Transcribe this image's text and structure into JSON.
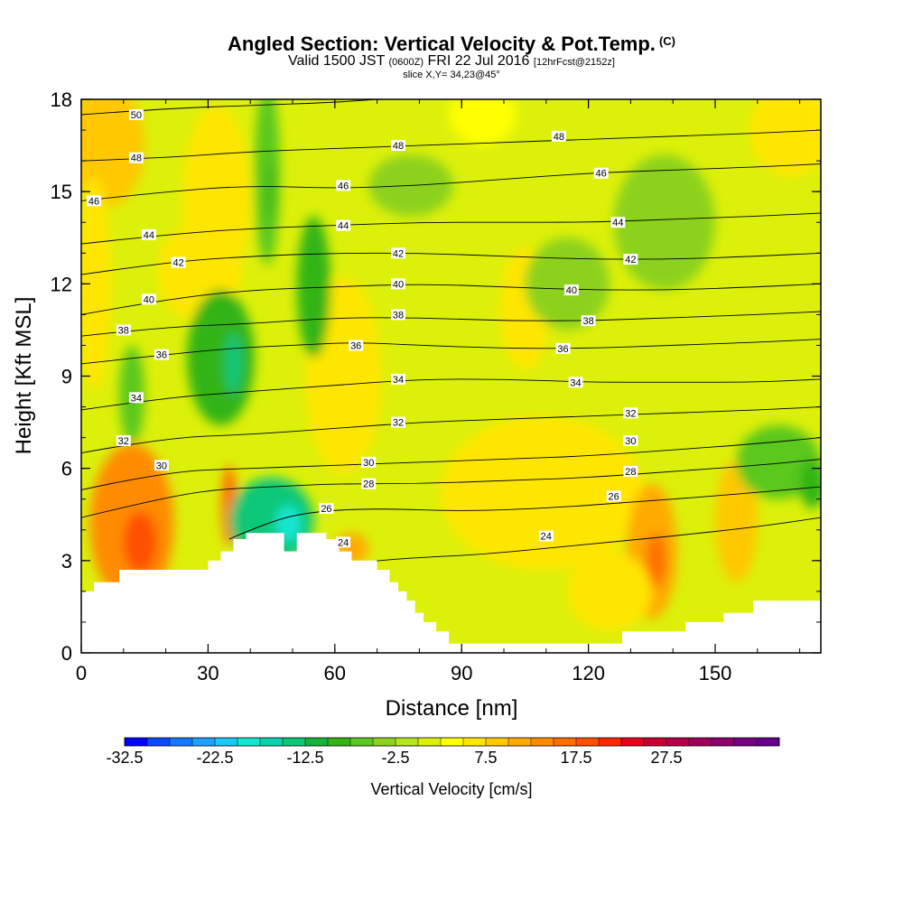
{
  "title": {
    "main": "Angled Section: Vertical Velocity & Pot.Temp.",
    "copyright": "(C)",
    "valid_prefix": "Valid 1500 JST",
    "zulu": "(0600Z)",
    "date": "FRI 22 Jul 2016",
    "forecast": "[12hrFcst@2152z]",
    "slice": "slice X,Y= 34,23@45°"
  },
  "chart_data": {
    "type": "heatmap",
    "title": "Angled Section: Vertical Velocity & Pot.Temp.",
    "xlabel": "Distance [nm]",
    "ylabel": "Height [Kft MSL]",
    "xlim": [
      0,
      175
    ],
    "ylim": [
      0,
      18
    ],
    "x_ticks": [
      "0",
      "30",
      "60",
      "90",
      "120",
      "150"
    ],
    "y_ticks": [
      "0",
      "3",
      "6",
      "9",
      "12",
      "15",
      "18"
    ],
    "colorbar": {
      "label": "Vertical Velocity [cm/s]",
      "tick_labels": [
        "-32.5",
        "-22.5",
        "-12.5",
        "-2.5",
        "7.5",
        "17.5",
        "27.5"
      ],
      "min": -32.5,
      "step": 2.5,
      "colors": [
        "#0000ff",
        "#0a4aff",
        "#1478ff",
        "#1ea0ff",
        "#19c8f5",
        "#14e6d2",
        "#0ad2aa",
        "#0ac878",
        "#14b43c",
        "#32b414",
        "#5ac81e",
        "#8cd21e",
        "#b4e61e",
        "#dcf00a",
        "#ffff00",
        "#ffe600",
        "#ffc800",
        "#ffaa00",
        "#ff8c00",
        "#ff6e00",
        "#ff5000",
        "#ff2800",
        "#e6001e",
        "#c80032",
        "#b4004b",
        "#a0005a",
        "#8c006e",
        "#780082",
        "#64008c"
      ]
    },
    "terrain_kft": [
      [
        0,
        2.0
      ],
      [
        3,
        2.0
      ],
      [
        3,
        2.3
      ],
      [
        9,
        2.3
      ],
      [
        9,
        2.7
      ],
      [
        30,
        2.7
      ],
      [
        30,
        3.0
      ],
      [
        33,
        3.0
      ],
      [
        33,
        3.3
      ],
      [
        36,
        3.3
      ],
      [
        36,
        3.7
      ],
      [
        39,
        3.7
      ],
      [
        39,
        3.9
      ],
      [
        48,
        3.9
      ],
      [
        48,
        3.3
      ],
      [
        51,
        3.3
      ],
      [
        51,
        3.9
      ],
      [
        58,
        3.9
      ],
      [
        58,
        3.7
      ],
      [
        61,
        3.7
      ],
      [
        61,
        3.3
      ],
      [
        64,
        3.3
      ],
      [
        64,
        3.0
      ],
      [
        70,
        3.0
      ],
      [
        70,
        2.7
      ],
      [
        73,
        2.7
      ],
      [
        73,
        2.3
      ],
      [
        75,
        2.3
      ],
      [
        75,
        2.0
      ],
      [
        77,
        2.0
      ],
      [
        77,
        1.7
      ],
      [
        79,
        1.7
      ],
      [
        79,
        1.3
      ],
      [
        81,
        1.3
      ],
      [
        81,
        1.0
      ],
      [
        84,
        1.0
      ],
      [
        84,
        0.7
      ],
      [
        87,
        0.7
      ],
      [
        87,
        0.3
      ],
      [
        128,
        0.3
      ],
      [
        128,
        0.7
      ],
      [
        143,
        0.7
      ],
      [
        143,
        1.0
      ],
      [
        152,
        1.0
      ],
      [
        152,
        1.3
      ],
      [
        159,
        1.3
      ],
      [
        159,
        1.7
      ],
      [
        175,
        1.7
      ]
    ],
    "velocity_cells": [
      {
        "x": 12,
        "y": 4.2,
        "rx": 10,
        "ry": 2.6,
        "w": 14
      },
      {
        "x": 14,
        "y": 3.6,
        "rx": 4,
        "ry": 1.0,
        "w": 19
      },
      {
        "x": 6,
        "y": 16.5,
        "rx": 9,
        "ry": 2.0,
        "w": 9
      },
      {
        "x": 3,
        "y": 12.0,
        "rx": 4,
        "ry": 3.5,
        "w": 6
      },
      {
        "x": 32,
        "y": 14.8,
        "rx": 8,
        "ry": 3.0,
        "w": 7
      },
      {
        "x": 28,
        "y": 12.4,
        "rx": 10,
        "ry": 1.6,
        "w": 6
      },
      {
        "x": 35,
        "y": 4.8,
        "rx": 1.8,
        "ry": 1.3,
        "w": 15
      },
      {
        "x": 62,
        "y": 9.0,
        "rx": 9,
        "ry": 3.2,
        "w": 6
      },
      {
        "x": 64,
        "y": 3.4,
        "rx": 4,
        "ry": 0.5,
        "w": 12
      },
      {
        "x": 109,
        "y": 5.2,
        "rx": 24,
        "ry": 2.5,
        "w": 6
      },
      {
        "x": 135,
        "y": 3.3,
        "rx": 6,
        "ry": 2.2,
        "w": 11
      },
      {
        "x": 136,
        "y": 3.0,
        "rx": 2.5,
        "ry": 0.9,
        "w": 15
      },
      {
        "x": 155,
        "y": 4.3,
        "rx": 5,
        "ry": 2.0,
        "w": 8
      },
      {
        "x": 125,
        "y": 2.0,
        "rx": 10,
        "ry": 1.3,
        "w": 6
      },
      {
        "x": 105,
        "y": 11.2,
        "rx": 6,
        "ry": 2.0,
        "w": 5
      },
      {
        "x": 168,
        "y": 17.0,
        "rx": 10,
        "ry": 1.5,
        "w": 5
      },
      {
        "x": 95,
        "y": 17.5,
        "rx": 8,
        "ry": 1.0,
        "w": 4
      },
      {
        "x": 33,
        "y": 9.6,
        "rx": 8,
        "ry": 2.2,
        "w": -10
      },
      {
        "x": 36,
        "y": 9.4,
        "rx": 2,
        "ry": 1.0,
        "w": -14
      },
      {
        "x": 45,
        "y": 4.3,
        "rx": 10,
        "ry": 1.4,
        "w": -13
      },
      {
        "x": 49,
        "y": 4.2,
        "rx": 3,
        "ry": 0.6,
        "w": -18
      },
      {
        "x": 55,
        "y": 11.9,
        "rx": 4,
        "ry": 2.3,
        "w": -8
      },
      {
        "x": 44,
        "y": 15.6,
        "rx": 3,
        "ry": 3.0,
        "w": -6
      },
      {
        "x": 45,
        "y": 15.0,
        "rx": 0.8,
        "ry": 1.0,
        "w": -10
      },
      {
        "x": 12,
        "y": 8.4,
        "rx": 3,
        "ry": 1.6,
        "w": -6
      },
      {
        "x": 138,
        "y": 14.0,
        "rx": 12,
        "ry": 2.2,
        "w": -5
      },
      {
        "x": 165,
        "y": 6.2,
        "rx": 10,
        "ry": 1.2,
        "w": -6
      },
      {
        "x": 173,
        "y": 5.5,
        "rx": 3,
        "ry": 0.8,
        "w": -8
      },
      {
        "x": 115,
        "y": 12.0,
        "rx": 10,
        "ry": 1.5,
        "w": -4
      },
      {
        "x": 78,
        "y": 15.2,
        "rx": 10,
        "ry": 1.0,
        "w": -4
      }
    ],
    "theta_contours": [
      {
        "level": 24,
        "pts": [
          [
            64,
            2.9
          ],
          [
            70,
            3.0
          ],
          [
            80,
            3.1
          ],
          [
            95,
            3.2
          ],
          [
            110,
            3.4
          ],
          [
            125,
            3.6
          ],
          [
            140,
            3.8
          ],
          [
            160,
            4.1
          ],
          [
            175,
            4.4
          ]
        ]
      },
      {
        "level": 26,
        "pts": [
          [
            35,
            3.7
          ],
          [
            45,
            4.3
          ],
          [
            55,
            4.6
          ],
          [
            70,
            4.7
          ],
          [
            90,
            4.6
          ],
          [
            110,
            4.7
          ],
          [
            130,
            4.9
          ],
          [
            150,
            5.1
          ],
          [
            175,
            5.4
          ]
        ]
      },
      {
        "level": 28,
        "pts": [
          [
            0,
            4.4
          ],
          [
            15,
            4.9
          ],
          [
            30,
            5.3
          ],
          [
            45,
            5.4
          ],
          [
            60,
            5.5
          ],
          [
            80,
            5.5
          ],
          [
            100,
            5.6
          ],
          [
            120,
            5.7
          ],
          [
            140,
            5.9
          ],
          [
            160,
            6.1
          ],
          [
            175,
            6.3
          ]
        ]
      },
      {
        "level": 30,
        "pts": [
          [
            0,
            5.3
          ],
          [
            20,
            5.9
          ],
          [
            40,
            6.0
          ],
          [
            60,
            6.1
          ],
          [
            80,
            6.2
          ],
          [
            100,
            6.3
          ],
          [
            120,
            6.4
          ],
          [
            140,
            6.6
          ],
          [
            160,
            6.8
          ],
          [
            175,
            7.0
          ]
        ]
      },
      {
        "level": 32,
        "pts": [
          [
            0,
            6.5
          ],
          [
            20,
            7.0
          ],
          [
            40,
            7.1
          ],
          [
            60,
            7.3
          ],
          [
            80,
            7.5
          ],
          [
            100,
            7.6
          ],
          [
            120,
            7.7
          ],
          [
            140,
            7.8
          ],
          [
            160,
            7.9
          ],
          [
            175,
            8.0
          ]
        ]
      },
      {
        "level": 34,
        "pts": [
          [
            0,
            7.9
          ],
          [
            20,
            8.3
          ],
          [
            40,
            8.5
          ],
          [
            60,
            8.7
          ],
          [
            80,
            8.9
          ],
          [
            100,
            8.9
          ],
          [
            120,
            8.8
          ],
          [
            140,
            8.8
          ],
          [
            160,
            8.8
          ],
          [
            175,
            8.9
          ]
        ]
      },
      {
        "level": 36,
        "pts": [
          [
            0,
            9.4
          ],
          [
            20,
            9.7
          ],
          [
            35,
            9.9
          ],
          [
            50,
            10.0
          ],
          [
            65,
            10.1
          ],
          [
            80,
            10.0
          ],
          [
            100,
            9.9
          ],
          [
            120,
            9.9
          ],
          [
            140,
            10.0
          ],
          [
            160,
            10.1
          ],
          [
            175,
            10.2
          ]
        ]
      },
      {
        "level": 38,
        "pts": [
          [
            0,
            10.3
          ],
          [
            20,
            10.6
          ],
          [
            40,
            10.7
          ],
          [
            60,
            10.9
          ],
          [
            80,
            10.9
          ],
          [
            100,
            10.8
          ],
          [
            120,
            10.8
          ],
          [
            140,
            10.9
          ],
          [
            160,
            11.0
          ],
          [
            175,
            11.1
          ]
        ]
      },
      {
        "level": 40,
        "pts": [
          [
            0,
            11.0
          ],
          [
            20,
            11.5
          ],
          [
            40,
            11.8
          ],
          [
            60,
            11.9
          ],
          [
            80,
            12.0
          ],
          [
            100,
            11.9
          ],
          [
            120,
            11.8
          ],
          [
            140,
            11.8
          ],
          [
            160,
            11.9
          ],
          [
            175,
            12.0
          ]
        ]
      },
      {
        "level": 42,
        "pts": [
          [
            0,
            12.3
          ],
          [
            20,
            12.7
          ],
          [
            40,
            12.9
          ],
          [
            60,
            13.0
          ],
          [
            80,
            13.0
          ],
          [
            100,
            12.9
          ],
          [
            120,
            12.8
          ],
          [
            140,
            12.8
          ],
          [
            160,
            12.9
          ],
          [
            175,
            13.0
          ]
        ]
      },
      {
        "level": 44,
        "pts": [
          [
            0,
            13.3
          ],
          [
            20,
            13.6
          ],
          [
            40,
            13.8
          ],
          [
            60,
            13.9
          ],
          [
            80,
            14.0
          ],
          [
            100,
            14.0
          ],
          [
            120,
            14.0
          ],
          [
            140,
            14.1
          ],
          [
            160,
            14.2
          ],
          [
            175,
            14.3
          ]
        ]
      },
      {
        "level": 46,
        "pts": [
          [
            0,
            14.7
          ],
          [
            20,
            15.0
          ],
          [
            40,
            15.2
          ],
          [
            60,
            15.1
          ],
          [
            80,
            15.2
          ],
          [
            100,
            15.4
          ],
          [
            120,
            15.6
          ],
          [
            140,
            15.7
          ],
          [
            160,
            15.8
          ],
          [
            175,
            15.9
          ]
        ]
      },
      {
        "level": 48,
        "pts": [
          [
            0,
            16.0
          ],
          [
            20,
            16.1
          ],
          [
            40,
            16.3
          ],
          [
            60,
            16.4
          ],
          [
            80,
            16.5
          ],
          [
            100,
            16.6
          ],
          [
            120,
            16.7
          ],
          [
            140,
            16.8
          ],
          [
            160,
            16.9
          ],
          [
            175,
            17.0
          ]
        ]
      },
      {
        "level": 50,
        "pts": [
          [
            0,
            17.5
          ],
          [
            20,
            17.7
          ],
          [
            40,
            17.8
          ],
          [
            60,
            17.9
          ],
          [
            70,
            18.0
          ]
        ]
      }
    ],
    "theta_labels": [
      {
        "text": "50",
        "x": 13,
        "y": 17.5
      },
      {
        "text": "48",
        "x": 13,
        "y": 16.1
      },
      {
        "text": "48",
        "x": 75,
        "y": 16.5
      },
      {
        "text": "48",
        "x": 113,
        "y": 16.8
      },
      {
        "text": "46",
        "x": 3,
        "y": 14.7
      },
      {
        "text": "46",
        "x": 62,
        "y": 15.2
      },
      {
        "text": "46",
        "x": 123,
        "y": 15.6
      },
      {
        "text": "44",
        "x": 16,
        "y": 13.6
      },
      {
        "text": "44",
        "x": 62,
        "y": 13.9
      },
      {
        "text": "44",
        "x": 127,
        "y": 14.0
      },
      {
        "text": "42",
        "x": 23,
        "y": 12.7
      },
      {
        "text": "42",
        "x": 75,
        "y": 13.0
      },
      {
        "text": "42",
        "x": 130,
        "y": 12.8
      },
      {
        "text": "40",
        "x": 16,
        "y": 11.5
      },
      {
        "text": "40",
        "x": 75,
        "y": 12.0
      },
      {
        "text": "40",
        "x": 116,
        "y": 11.8
      },
      {
        "text": "38",
        "x": 10,
        "y": 10.5
      },
      {
        "text": "38",
        "x": 75,
        "y": 11.0
      },
      {
        "text": "38",
        "x": 120,
        "y": 10.8
      },
      {
        "text": "36",
        "x": 19,
        "y": 9.7
      },
      {
        "text": "36",
        "x": 65,
        "y": 10.0
      },
      {
        "text": "36",
        "x": 114,
        "y": 9.9
      },
      {
        "text": "34",
        "x": 13,
        "y": 8.3
      },
      {
        "text": "34",
        "x": 75,
        "y": 8.9
      },
      {
        "text": "34",
        "x": 117,
        "y": 8.8
      },
      {
        "text": "32",
        "x": 10,
        "y": 6.9
      },
      {
        "text": "32",
        "x": 75,
        "y": 7.5
      },
      {
        "text": "32",
        "x": 130,
        "y": 7.8
      },
      {
        "text": "30",
        "x": 19,
        "y": 6.1
      },
      {
        "text": "30",
        "x": 68,
        "y": 6.2
      },
      {
        "text": "30",
        "x": 130,
        "y": 6.9
      },
      {
        "text": "28",
        "x": 68,
        "y": 5.5
      },
      {
        "text": "28",
        "x": 130,
        "y": 5.9
      },
      {
        "text": "26",
        "x": 58,
        "y": 4.7
      },
      {
        "text": "26",
        "x": 126,
        "y": 5.1
      },
      {
        "text": "24",
        "x": 62,
        "y": 3.6
      },
      {
        "text": "24",
        "x": 110,
        "y": 3.8
      }
    ]
  }
}
